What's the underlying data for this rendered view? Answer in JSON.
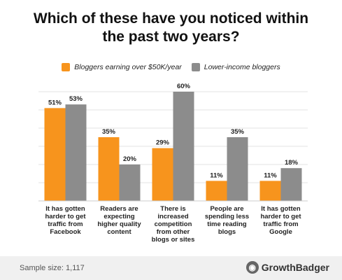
{
  "title_line1": "Which of these have you noticed within",
  "title_line2": "the past two years?",
  "legend": {
    "series1": "Bloggers earning over $50K/year",
    "series2": "Lower-income bloggers"
  },
  "colors": {
    "series1": "#F7941D",
    "series2": "#8C8C8C",
    "grid": "#e3e3e3"
  },
  "chart_data": {
    "type": "bar",
    "categories": [
      [
        "It has gotten",
        "harder to get",
        "traffic from",
        "Facebook"
      ],
      [
        "Readers are",
        "expecting",
        "higher quality",
        "content"
      ],
      [
        "There is",
        "increased",
        "competition",
        "from other",
        "blogs or sites"
      ],
      [
        "People are",
        "spending less",
        "time reading",
        "blogs"
      ],
      [
        "It has gotten",
        "harder to get",
        "traffic from",
        "Google"
      ]
    ],
    "series": [
      {
        "name": "Bloggers earning over $50K/year",
        "values": [
          51,
          35,
          29,
          11,
          11
        ]
      },
      {
        "name": "Lower-income bloggers",
        "values": [
          53,
          20,
          60,
          35,
          18
        ]
      }
    ],
    "value_suffix": "%",
    "ylim": [
      0,
      65
    ],
    "grid": true,
    "legend_position": "top"
  },
  "footer": {
    "sample_label": "Sample size: 1,117",
    "brand": "GrowthBadger"
  }
}
